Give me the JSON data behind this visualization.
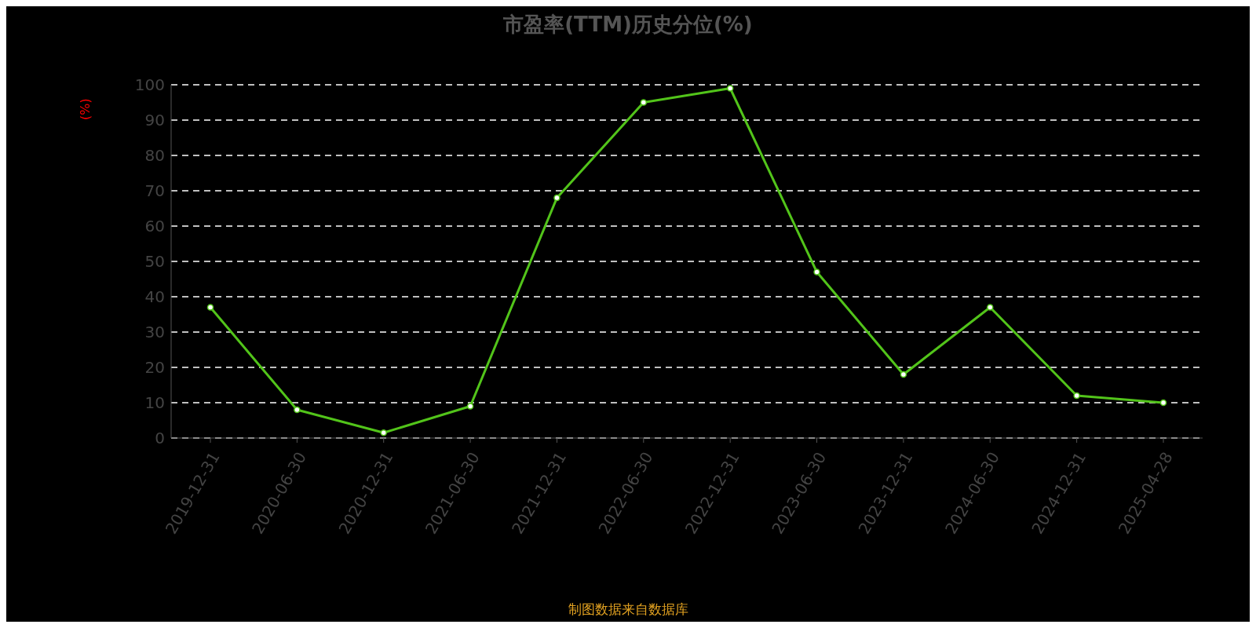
{
  "chart_data": {
    "type": "line",
    "title": "市盈率(TTM)历史分位(%)",
    "ylabel": "(%)",
    "annotations": [
      "制图数据来自数据库"
    ],
    "categories": [
      "2019-12-31",
      "2020-06-30",
      "2020-12-31",
      "2021-06-30",
      "2021-12-31",
      "2022-06-30",
      "2022-12-31",
      "2023-06-30",
      "2023-12-31",
      "2024-06-30",
      "2024-12-31",
      "2025-04-28"
    ],
    "series": [
      {
        "color": "#52c41a",
        "values": [
          37,
          8,
          1.5,
          9,
          68,
          95,
          99,
          47,
          18,
          37,
          12,
          10
        ]
      }
    ],
    "ylim": [
      0,
      100
    ],
    "yticks": [
      0,
      10,
      20,
      30,
      40,
      50,
      60,
      70,
      80,
      90,
      100
    ],
    "grid": "y",
    "marker": "circle",
    "line_style": "solid"
  }
}
